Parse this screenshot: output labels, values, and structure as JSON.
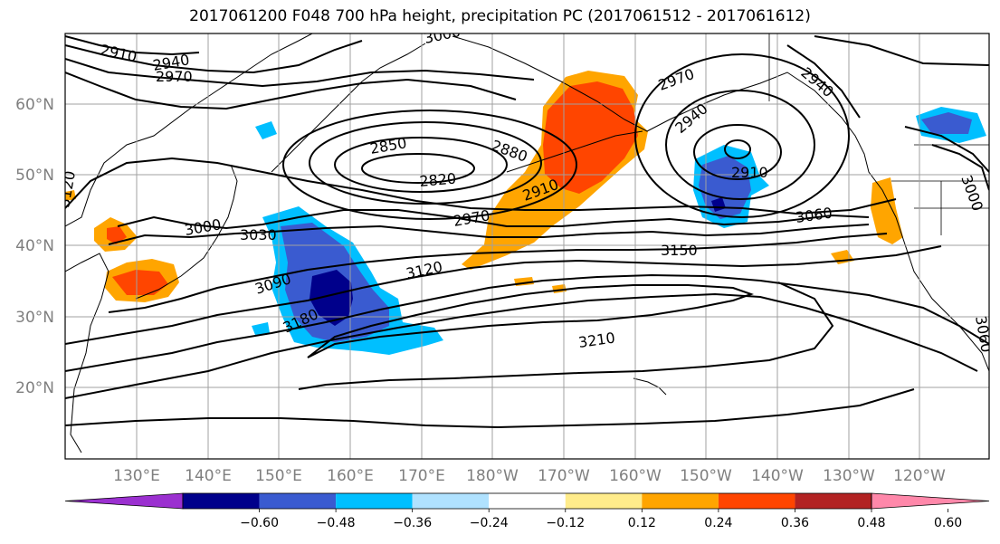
{
  "title": "2017061200 F048 700 hPa height, precipitation PC (2017061512 - 2017061612)",
  "map": {
    "lat_ticks": [
      "60°N",
      "50°N",
      "40°N",
      "30°N",
      "20°N"
    ],
    "lon_ticks": [
      "130°E",
      "140°E",
      "150°E",
      "160°E",
      "170°E",
      "180°W",
      "170°W",
      "160°W",
      "150°W",
      "140°W",
      "130°W",
      "120°W"
    ],
    "contour_labels": [
      "2910",
      "2940",
      "2970",
      "3000",
      "2850",
      "2820",
      "2880",
      "2910",
      "2970",
      "3000",
      "3030",
      "3090",
      "3120",
      "3180",
      "3150",
      "3060",
      "2910",
      "2940",
      "2970",
      "2940",
      "3210",
      "3000",
      "3120",
      "3060"
    ]
  },
  "colorbar": {
    "colors": [
      "#9b30d0",
      "#00008b",
      "#3a5bd0",
      "#00bfff",
      "#b0e2ff",
      "#ffffff",
      "#ffec8b",
      "#ffa500",
      "#ff4500",
      "#b22222",
      "#ff88aa"
    ],
    "tick_labels": [
      "−0.60",
      "−0.48",
      "−0.36",
      "−0.24",
      "−0.12",
      "0.12",
      "0.24",
      "0.36",
      "0.48",
      "0.60"
    ]
  }
}
